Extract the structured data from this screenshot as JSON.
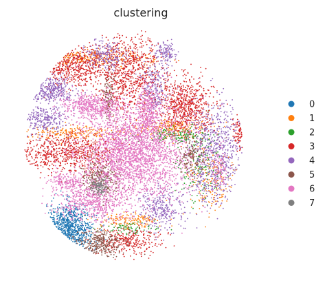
{
  "chart_data": {
    "type": "scatter",
    "title": "clustering",
    "xlabel": "",
    "ylabel": "",
    "grid": false,
    "axes_visible": false,
    "legend_placement": "right",
    "xlim": [
      0,
      1
    ],
    "ylim": [
      0,
      1
    ],
    "series": [
      {
        "name": "0",
        "color": "#1f77b4",
        "regions": [
          {
            "cx": 0.21,
            "cy": 0.2,
            "rx": 0.09,
            "ry": 0.09,
            "n": 700
          }
        ]
      },
      {
        "name": "1",
        "color": "#ff7f0e",
        "regions": [
          {
            "cx": 0.3,
            "cy": 0.88,
            "rx": 0.22,
            "ry": 0.03,
            "n": 220
          },
          {
            "cx": 0.23,
            "cy": 0.58,
            "rx": 0.19,
            "ry": 0.025,
            "n": 200
          },
          {
            "cx": 0.62,
            "cy": 0.6,
            "rx": 0.13,
            "ry": 0.03,
            "n": 200
          },
          {
            "cx": 0.78,
            "cy": 0.4,
            "rx": 0.1,
            "ry": 0.16,
            "n": 200
          },
          {
            "cx": 0.45,
            "cy": 0.23,
            "rx": 0.12,
            "ry": 0.03,
            "n": 150
          }
        ]
      },
      {
        "name": "2",
        "color": "#2ca02c",
        "regions": [
          {
            "cx": 0.64,
            "cy": 0.57,
            "rx": 0.12,
            "ry": 0.025,
            "n": 160
          },
          {
            "cx": 0.75,
            "cy": 0.45,
            "rx": 0.08,
            "ry": 0.14,
            "n": 160
          },
          {
            "cx": 0.45,
            "cy": 0.2,
            "rx": 0.1,
            "ry": 0.02,
            "n": 80
          }
        ]
      },
      {
        "name": "3",
        "color": "#d62728",
        "regions": [
          {
            "cx": 0.23,
            "cy": 0.85,
            "rx": 0.13,
            "ry": 0.08,
            "n": 500
          },
          {
            "cx": 0.46,
            "cy": 0.82,
            "rx": 0.12,
            "ry": 0.14,
            "n": 800
          },
          {
            "cx": 0.68,
            "cy": 0.69,
            "rx": 0.1,
            "ry": 0.1,
            "n": 700
          },
          {
            "cx": 0.21,
            "cy": 0.5,
            "rx": 0.17,
            "ry": 0.07,
            "n": 700
          },
          {
            "cx": 0.45,
            "cy": 0.15,
            "rx": 0.12,
            "ry": 0.05,
            "n": 300
          },
          {
            "cx": 0.9,
            "cy": 0.58,
            "rx": 0.03,
            "ry": 0.06,
            "n": 80
          }
        ]
      },
      {
        "name": "4",
        "color": "#9467bd",
        "regions": [
          {
            "cx": 0.13,
            "cy": 0.75,
            "rx": 0.09,
            "ry": 0.05,
            "n": 300
          },
          {
            "cx": 0.36,
            "cy": 0.89,
            "rx": 0.08,
            "ry": 0.05,
            "n": 200
          },
          {
            "cx": 0.55,
            "cy": 0.76,
            "rx": 0.05,
            "ry": 0.1,
            "n": 200
          },
          {
            "cx": 0.8,
            "cy": 0.5,
            "rx": 0.1,
            "ry": 0.18,
            "n": 700
          },
          {
            "cx": 0.58,
            "cy": 0.28,
            "rx": 0.08,
            "ry": 0.08,
            "n": 300
          },
          {
            "cx": 0.11,
            "cy": 0.63,
            "rx": 0.09,
            "ry": 0.05,
            "n": 250
          },
          {
            "cx": 0.6,
            "cy": 0.9,
            "rx": 0.04,
            "ry": 0.04,
            "n": 120
          }
        ]
      },
      {
        "name": "5",
        "color": "#8c564b",
        "regions": [
          {
            "cx": 0.33,
            "cy": 0.4,
            "rx": 0.07,
            "ry": 0.07,
            "n": 300
          },
          {
            "cx": 0.33,
            "cy": 0.14,
            "rx": 0.09,
            "ry": 0.05,
            "n": 300
          },
          {
            "cx": 0.37,
            "cy": 0.72,
            "rx": 0.02,
            "ry": 0.09,
            "n": 120
          },
          {
            "cx": 0.7,
            "cy": 0.48,
            "rx": 0.05,
            "ry": 0.07,
            "n": 150
          }
        ]
      },
      {
        "name": "6",
        "color": "#e377c2",
        "regions": [
          {
            "cx": 0.47,
            "cy": 0.5,
            "rx": 0.2,
            "ry": 0.18,
            "n": 2800
          },
          {
            "cx": 0.3,
            "cy": 0.69,
            "rx": 0.11,
            "ry": 0.04,
            "n": 500
          },
          {
            "cx": 0.53,
            "cy": 0.67,
            "rx": 0.04,
            "ry": 0.09,
            "n": 300
          },
          {
            "cx": 0.3,
            "cy": 0.3,
            "rx": 0.12,
            "ry": 0.06,
            "n": 500
          },
          {
            "cx": 0.2,
            "cy": 0.38,
            "rx": 0.08,
            "ry": 0.04,
            "n": 200
          },
          {
            "cx": 0.82,
            "cy": 0.44,
            "rx": 0.03,
            "ry": 0.07,
            "n": 90
          }
        ]
      },
      {
        "name": "7",
        "color": "#7f7f7f",
        "regions": [
          {
            "cx": 0.33,
            "cy": 0.37,
            "rx": 0.03,
            "ry": 0.03,
            "n": 120
          }
        ]
      }
    ]
  }
}
